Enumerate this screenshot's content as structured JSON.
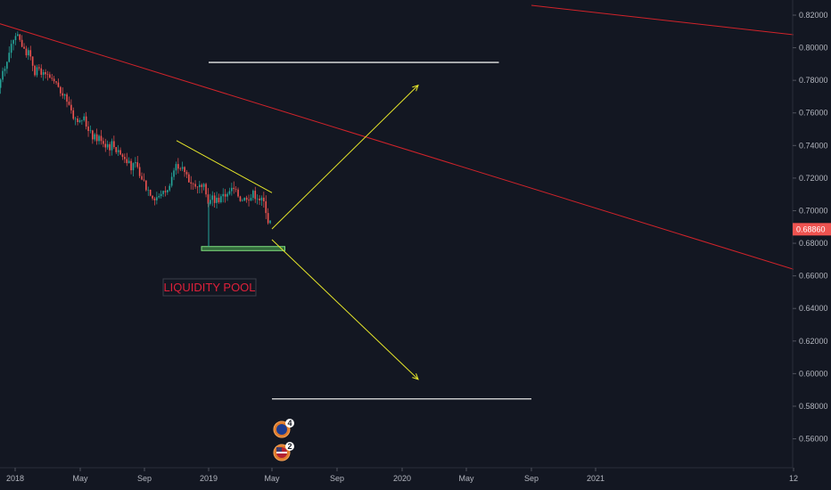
{
  "colors": {
    "background": "#131722",
    "axis_text": "#b2b5be",
    "candle_up": "#26a69a",
    "candle_down": "#ef5350",
    "trendline_red": "#d1232a",
    "pattern_yellow": "#e6e62a",
    "target_white": "#e8e8e8",
    "pool_green": "#4caf50",
    "price_tag": "#ef5350",
    "label_text": "#e0203a"
  },
  "current_price": "0.68860",
  "liquidity_label": "LIQUIDITY POOL",
  "event_badges": [
    {
      "name": "au-flag-event-icon",
      "count": "4"
    },
    {
      "name": "us-flag-event-icon",
      "count": "2"
    }
  ],
  "chart_data": {
    "type": "candlestick",
    "title": "",
    "xlabel": "",
    "ylabel": "",
    "ylim": [
      0.555,
      0.825
    ],
    "x_ticks": [
      "2018",
      "May",
      "Sep",
      "2019",
      "May",
      "Sep",
      "2020",
      "May",
      "Sep",
      "2021",
      "12"
    ],
    "y_ticks": [
      "0.82000",
      "0.80000",
      "0.78000",
      "0.76000",
      "0.74000",
      "0.72000",
      "0.70000",
      "0.68000",
      "0.66000",
      "0.64000",
      "0.62000",
      "0.60000",
      "0.58000",
      "0.56000"
    ],
    "price_path": [
      {
        "date": "2017-10",
        "price": 0.752
      },
      {
        "date": "2017-12",
        "price": 0.778
      },
      {
        "date": "2018-01",
        "price": 0.812
      },
      {
        "date": "2018-02",
        "price": 0.79
      },
      {
        "date": "2018-03",
        "price": 0.778
      },
      {
        "date": "2018-04",
        "price": 0.768
      },
      {
        "date": "2018-05",
        "price": 0.755
      },
      {
        "date": "2018-06",
        "price": 0.745
      },
      {
        "date": "2018-07",
        "price": 0.742
      },
      {
        "date": "2018-08",
        "price": 0.73
      },
      {
        "date": "2018-09",
        "price": 0.715
      },
      {
        "date": "2018-10",
        "price": 0.71
      },
      {
        "date": "2018-11",
        "price": 0.725
      },
      {
        "date": "2018-12",
        "price": 0.718
      },
      {
        "date": "2019-01",
        "price": 0.705
      },
      {
        "date": "2019-02",
        "price": 0.712
      },
      {
        "date": "2019-03",
        "price": 0.71
      },
      {
        "date": "2019-04",
        "price": 0.712
      },
      {
        "date": "2019-05",
        "price": 0.6886
      }
    ],
    "annotations": {
      "long_trendline": [
        {
          "date": "2017-11",
          "price": 0.818
        },
        {
          "date": "2021-12",
          "price": 0.664
        }
      ],
      "upper_trendline": [
        {
          "date": "2020-09",
          "price": 0.826
        },
        {
          "date": "2021-12",
          "price": 0.808
        }
      ],
      "triangle_top": [
        {
          "date": "2018-11",
          "price": 0.743
        },
        {
          "date": "2019-05",
          "price": 0.711
        }
      ],
      "target_high": {
        "price": 0.791,
        "from": "2019-01",
        "to": "2020-07"
      },
      "target_low": {
        "price": 0.5845,
        "from": "2019-05",
        "to": "2020-09"
      },
      "liquidity_pool": {
        "price_top": 0.678,
        "price_bottom": 0.6755,
        "from": "2019-01",
        "to": "2019-07"
      },
      "arrow_up": [
        {
          "date": "2019-05",
          "price": 0.6888
        },
        {
          "date": "2020-02",
          "price": 0.777
        }
      ],
      "arrow_down": [
        {
          "date": "2019-05",
          "price": 0.6822
        },
        {
          "date": "2020-02",
          "price": 0.5965
        }
      ]
    }
  }
}
